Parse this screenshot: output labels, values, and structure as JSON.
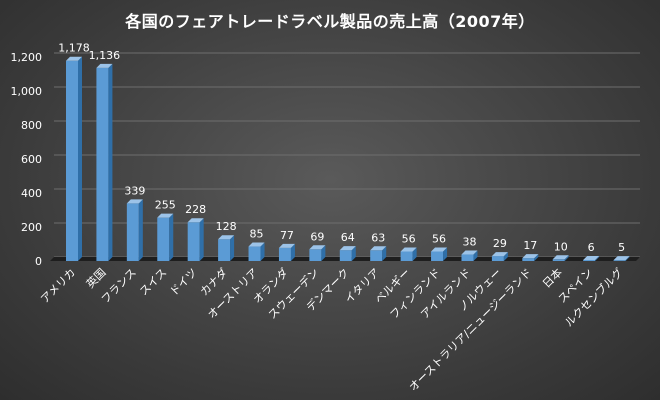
{
  "chart_data": {
    "type": "bar",
    "title": "各国のフェアトレードラベル製品の売上高（2007年）",
    "xlabel": "",
    "ylabel": "",
    "ylim": [
      0,
      1200
    ],
    "y_ticks": [
      "0",
      "200",
      "400",
      "600",
      "800",
      "1,000",
      "1,200"
    ],
    "grid": true,
    "legend": "none",
    "categories": [
      "アメリカ",
      "英国",
      "フランス",
      "スイス",
      "ドイツ",
      "カナダ",
      "オーストリア",
      "オランダ",
      "スウェーデン",
      "デンマーク",
      "イタリア",
      "ベルギー",
      "フィンランド",
      "アイルランド",
      "ノルウェー",
      "オーストラリア/ニュージーランド",
      "日本",
      "スペイン",
      "ルクセンブルグ"
    ],
    "values": [
      1178,
      1136,
      339,
      255,
      228,
      128,
      85,
      77,
      69,
      64,
      63,
      56,
      56,
      38,
      29,
      17,
      10,
      6,
      5
    ],
    "data_labels": [
      "1,178",
      "1,136",
      "339",
      "255",
      "228",
      "128",
      "85",
      "77",
      "69",
      "64",
      "63",
      "56",
      "56",
      "38",
      "29",
      "17",
      "10",
      "6",
      "5"
    ],
    "colors": {
      "bar_front": "#5b9bd5",
      "bar_side": "#2f6fa8",
      "bar_top": "#9cc3e8",
      "text": "#ffffff",
      "grid": "#6e6e6e",
      "floor": "#1e1e1e"
    }
  }
}
